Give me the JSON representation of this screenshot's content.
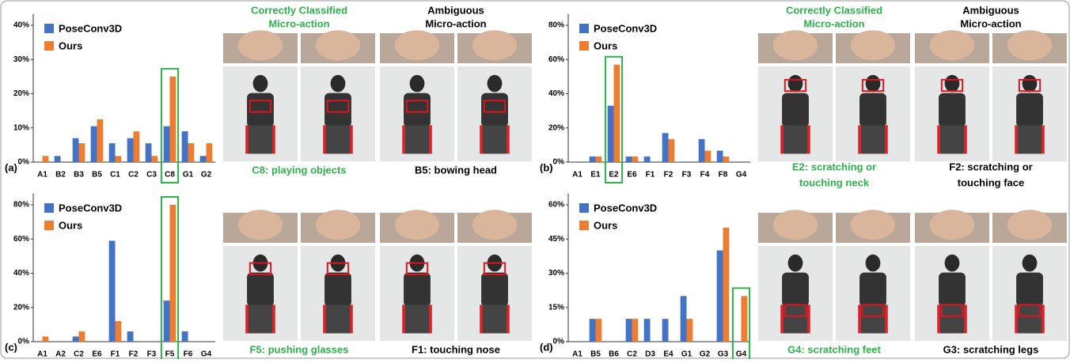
{
  "chart_data": [
    {
      "type": "bar",
      "panel_label": "(a)",
      "categories": [
        "A1",
        "B2",
        "B3",
        "B5",
        "C1",
        "C2",
        "C3",
        "C8",
        "G1",
        "G2"
      ],
      "series": [
        {
          "name": "PoseConv3D",
          "color": "#4472c4",
          "values": [
            0,
            1.8,
            7,
            10.5,
            5.5,
            7,
            5.5,
            10.5,
            9,
            1.8
          ]
        },
        {
          "name": "Ours",
          "color": "#ed7d31",
          "values": [
            1.8,
            0,
            5.5,
            12.5,
            1.8,
            9,
            1.8,
            25,
            5.5,
            5.5
          ]
        }
      ],
      "ylim": [
        0,
        40
      ],
      "yticks": [
        {
          "value": 0,
          "label": "0%"
        },
        {
          "value": 10,
          "label": "10%"
        },
        {
          "value": 20,
          "label": "20%"
        },
        {
          "value": 30,
          "label": "30%"
        },
        {
          "value": 40,
          "label": "40%"
        }
      ],
      "highlight": "C8",
      "highlight_color": "#2cb34a"
    },
    {
      "type": "bar",
      "panel_label": "(b)",
      "categories": [
        "A1",
        "E1",
        "E2",
        "E6",
        "F1",
        "F2",
        "F3",
        "F4",
        "F8",
        "G4"
      ],
      "series": [
        {
          "name": "PoseConv3D",
          "color": "#4472c4",
          "values": [
            0,
            3.3,
            33,
            3.3,
            3.3,
            17,
            0,
            13.5,
            6.7,
            0
          ]
        },
        {
          "name": "Ours",
          "color": "#ed7d31",
          "values": [
            0,
            3.3,
            57,
            3.3,
            0,
            13.5,
            0,
            6.7,
            3.3,
            0
          ]
        }
      ],
      "ylim": [
        0,
        80
      ],
      "yticks": [
        {
          "value": 0,
          "label": "0%"
        },
        {
          "value": 20,
          "label": "20%"
        },
        {
          "value": 40,
          "label": "40%"
        },
        {
          "value": 60,
          "label": "60%"
        },
        {
          "value": 80,
          "label": "80%"
        }
      ],
      "highlight": "E2",
      "highlight_color": "#2cb34a"
    },
    {
      "type": "bar",
      "panel_label": "(c)",
      "categories": [
        "A1",
        "A2",
        "C2",
        "E6",
        "F1",
        "F2",
        "F3",
        "F5",
        "F6",
        "G4"
      ],
      "series": [
        {
          "name": "PoseConv3D",
          "color": "#4472c4",
          "values": [
            0,
            0,
            3,
            0,
            59,
            6,
            0,
            24,
            6,
            0
          ]
        },
        {
          "name": "Ours",
          "color": "#ed7d31",
          "values": [
            3,
            0,
            6,
            0,
            12,
            0,
            0,
            80,
            0,
            0
          ]
        }
      ],
      "ylim": [
        0,
        80
      ],
      "yticks": [
        {
          "value": 0,
          "label": "0%"
        },
        {
          "value": 20,
          "label": "20%"
        },
        {
          "value": 40,
          "label": "40%"
        },
        {
          "value": 60,
          "label": "60%"
        },
        {
          "value": 80,
          "label": "80%"
        }
      ],
      "highlight": "F5",
      "highlight_color": "#2cb34a"
    },
    {
      "type": "bar",
      "panel_label": "(d)",
      "categories": [
        "A1",
        "B5",
        "B6",
        "C2",
        "D3",
        "E4",
        "G1",
        "G2",
        "G3",
        "G4"
      ],
      "series": [
        {
          "name": "PoseConv3D",
          "color": "#4472c4",
          "values": [
            0,
            10,
            0,
            10,
            10,
            10,
            20,
            0,
            40,
            0
          ]
        },
        {
          "name": "Ours",
          "color": "#ed7d31",
          "values": [
            0,
            10,
            0,
            10,
            0,
            0,
            10,
            0,
            50,
            20
          ]
        }
      ],
      "ylim": [
        0,
        60
      ],
      "yticks": [
        {
          "value": 0,
          "label": "0%"
        },
        {
          "value": 15,
          "label": "15%"
        },
        {
          "value": 30,
          "label": "30%"
        },
        {
          "value": 45,
          "label": "45%"
        },
        {
          "value": 60,
          "label": "60%"
        }
      ],
      "highlight": "G4",
      "highlight_color": "#2cb34a"
    }
  ],
  "headers": {
    "correct": [
      "Correctly Classified",
      "Micro-action"
    ],
    "ambiguous": [
      "Ambiguous",
      "Micro-action"
    ]
  },
  "captions": [
    {
      "correct": [
        "C8: playing objects"
      ],
      "ambiguous": [
        "B5: bowing head"
      ]
    },
    {
      "correct": [
        "E2: scratching or",
        "touching neck"
      ],
      "ambiguous": [
        "F2: scratching or",
        "touching face"
      ]
    },
    {
      "correct": [
        "F5: pushing glasses"
      ],
      "ambiguous": [
        "F1: touching nose"
      ]
    },
    {
      "correct": [
        "G4: scratching feet"
      ],
      "ambiguous": [
        "G3: scratching legs"
      ]
    }
  ]
}
